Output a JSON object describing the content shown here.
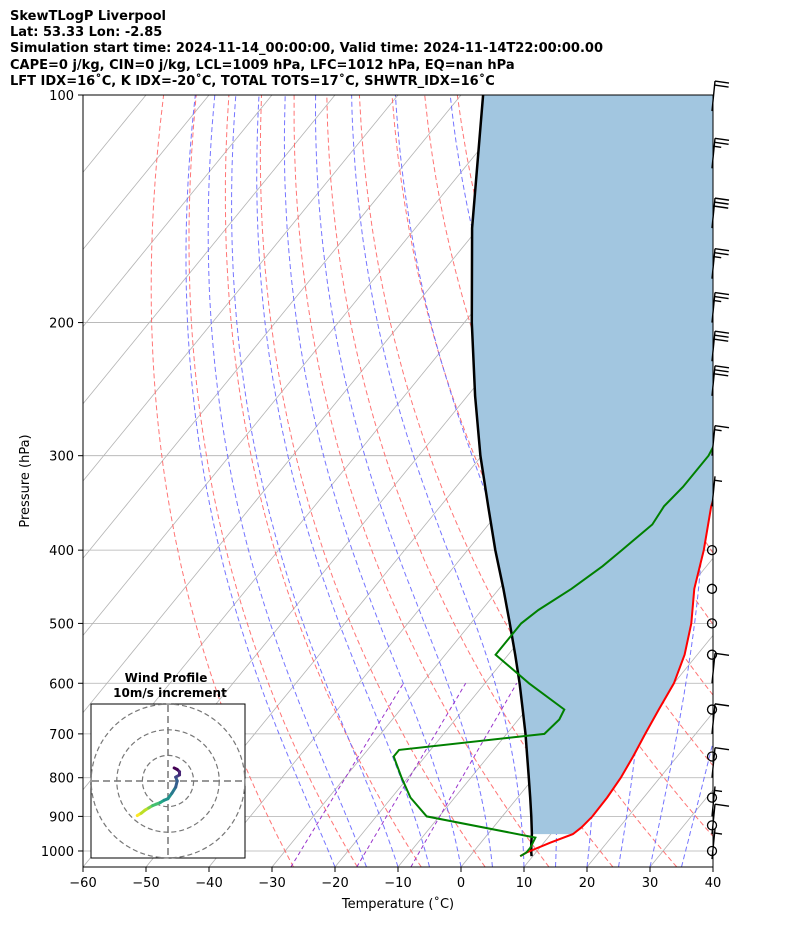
{
  "header": {
    "line1": "SkewTLogP Liverpool",
    "line2": "Lat: 53.33   Lon: -2.85",
    "line3": "Simulation start time: 2024-11-14_00:00:00, Valid time: 2024-11-14T22:00:00.00",
    "line4": "CAPE=0 j/kg, CIN=0 j/kg, LCL=1009 hPa, LFC=1012 hPa, EQ=nan hPa",
    "line5": "LFT IDX=16˚C, K IDX=-20˚C, TOTAL TOTS=17˚C, SHWTR_IDX=16˚C"
  },
  "colors": {
    "temperature": "#ff0000",
    "dewpoint": "#008000",
    "parcel": "#000000",
    "cape_fill": "#a2c6e0",
    "dry_adiabat": "#ff6666",
    "moist_adiabat": "#6666ff",
    "mixing_ratio": "#9933cc",
    "isotherm": "#b3b3b3"
  },
  "chart_data": {
    "type": "skewt",
    "xlabel": "Temperature (˚C)",
    "ylabel": "Pressure (hPa)",
    "xlim": [
      -60,
      40
    ],
    "ylim": [
      1050,
      100
    ],
    "yscale": "log",
    "grid": true,
    "x_ticks": [
      -60,
      -50,
      -40,
      -30,
      -20,
      -10,
      0,
      10,
      20,
      30,
      40
    ],
    "x_tick_labels": [
      "−60",
      "−50",
      "−40",
      "−30",
      "−20",
      "−10",
      "0",
      "10",
      "20",
      "30",
      "40"
    ],
    "y_ticks": [
      100,
      200,
      300,
      400,
      500,
      600,
      700,
      800,
      900,
      1000
    ],
    "y_tick_labels": [
      "100",
      "200",
      "300",
      "400",
      "500",
      "600",
      "700",
      "800",
      "900",
      "1000"
    ],
    "temperature_profile": {
      "p": [
        1016,
        1005,
        975,
        950,
        930,
        900,
        850,
        800,
        750,
        700,
        650,
        600,
        550,
        500,
        450,
        400,
        350,
        300,
        270,
        250,
        230,
        200,
        180,
        160,
        140,
        120,
        110,
        100
      ],
      "t": [
        8,
        8.5,
        11,
        13.5,
        14,
        14.3,
        14.2,
        13.8,
        13,
        12,
        11,
        10,
        8,
        5,
        1,
        -2.5,
        -7,
        -11,
        -14,
        -14.5,
        -14.5,
        -14.6,
        -14.2,
        -13,
        -11.5,
        -8.5,
        -6.5,
        -5
      ]
    },
    "dewpoint_profile": {
      "p": [
        1016,
        1005,
        990,
        960,
        900,
        850,
        800,
        750,
        735,
        700,
        670,
        650,
        600,
        550,
        500,
        480,
        450,
        420,
        400,
        370,
        350,
        330,
        300,
        280,
        260,
        250,
        230,
        200,
        170,
        150,
        140,
        130,
        120,
        110,
        100
      ],
      "dp": [
        8,
        8.5,
        8.5,
        8,
        -12,
        -17,
        -21,
        -25,
        -25,
        -4,
        -3.5,
        -4,
        -13,
        -22,
        -22,
        -21,
        -18.5,
        -16.5,
        -15.5,
        -14,
        -14.5,
        -14,
        -14,
        -15,
        -17,
        -18,
        -18.4,
        -17.4,
        -17.5,
        -17.5,
        -17.5,
        -16.5,
        -15,
        -13.5,
        -12
      ]
    },
    "parcel_profile": {
      "p": [
        1016,
        1005,
        975,
        950,
        900,
        850,
        800,
        750,
        700,
        650,
        600,
        550,
        500,
        450,
        400,
        350,
        300,
        250,
        200,
        150,
        100
      ],
      "t": [
        9.8,
        9.3,
        8.0,
        7.0,
        4.6,
        2.0,
        -0.8,
        -3.8,
        -7.0,
        -10.6,
        -14.5,
        -18.9,
        -23.8,
        -29.3,
        -35.6,
        -42.4,
        -50.2,
        -58.8,
        -68.8,
        -81.0,
        -96.5
      ]
    },
    "wind_barbs": {
      "p": [
        1025,
        1000,
        950,
        925,
        900,
        850,
        800,
        750,
        700,
        650,
        600,
        550,
        500,
        450,
        400,
        350,
        300,
        250,
        225,
        200,
        175,
        150,
        125,
        105
      ],
      "speed_kt": [
        5,
        5,
        10,
        0,
        5,
        0,
        10,
        0,
        10,
        0,
        10,
        0,
        0,
        0,
        0,
        5,
        15,
        30,
        30,
        25,
        25,
        30,
        25,
        20
      ],
      "calm": [
        false,
        true,
        false,
        true,
        false,
        true,
        false,
        true,
        false,
        true,
        false,
        true,
        true,
        true,
        true,
        false,
        false,
        false,
        false,
        false,
        false,
        false,
        false,
        false
      ]
    },
    "hodograph": {
      "title": "Wind Profile",
      "subtitle": "10m/s increment",
      "u": [
        -4,
        -3.5,
        -3,
        -2.5,
        -2,
        -1.5,
        -1,
        -0.5,
        0,
        0.5,
        1,
        1.2,
        1,
        1.5,
        1.5,
        1.2,
        0.8
      ],
      "v": [
        -4.5,
        -4.2,
        -3.8,
        -3.5,
        -3.2,
        -3,
        -2.8,
        -2.5,
        -2.3,
        -1.6,
        -0.8,
        0,
        0.5,
        0.8,
        1.2,
        1.5,
        1.7
      ]
    }
  }
}
